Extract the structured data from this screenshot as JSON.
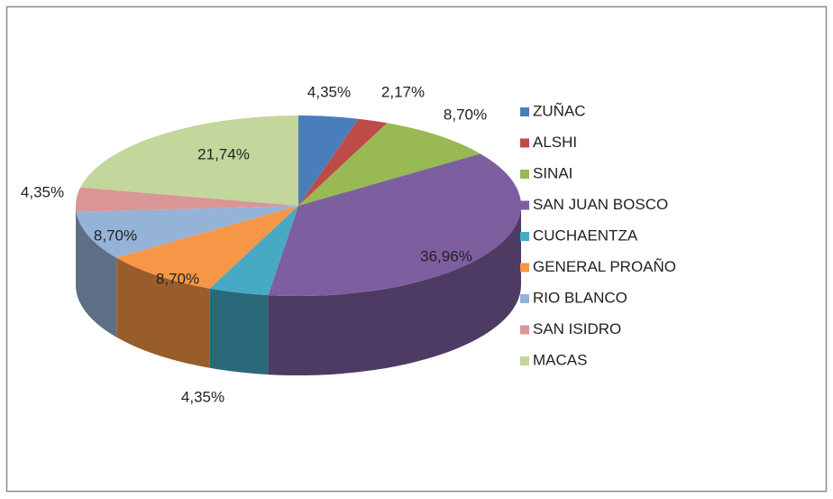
{
  "chart_data": {
    "type": "pie",
    "categories": [
      "ZUÑAC",
      "ALSHI",
      "SINAI",
      "SAN JUAN BOSCO",
      "CUCHAENTZA",
      "GENERAL PROAÑO",
      "RIO BLANCO",
      "SAN ISIDRO",
      "MACAS"
    ],
    "values": [
      4.35,
      2.17,
      8.7,
      36.96,
      4.35,
      8.7,
      8.7,
      4.35,
      21.74
    ],
    "value_labels": [
      "4,35%",
      "2,17%",
      "8,70%",
      "36,96%",
      "4,35%",
      "8,70%",
      "8,70%",
      "4,35%",
      "21,74%"
    ],
    "colors": [
      "#4a7ebb",
      "#be4b48",
      "#98b954",
      "#7d5fa0",
      "#46aac5",
      "#f79646",
      "#95b3d7",
      "#d99694",
      "#c3d69b"
    ],
    "legend": "right"
  }
}
